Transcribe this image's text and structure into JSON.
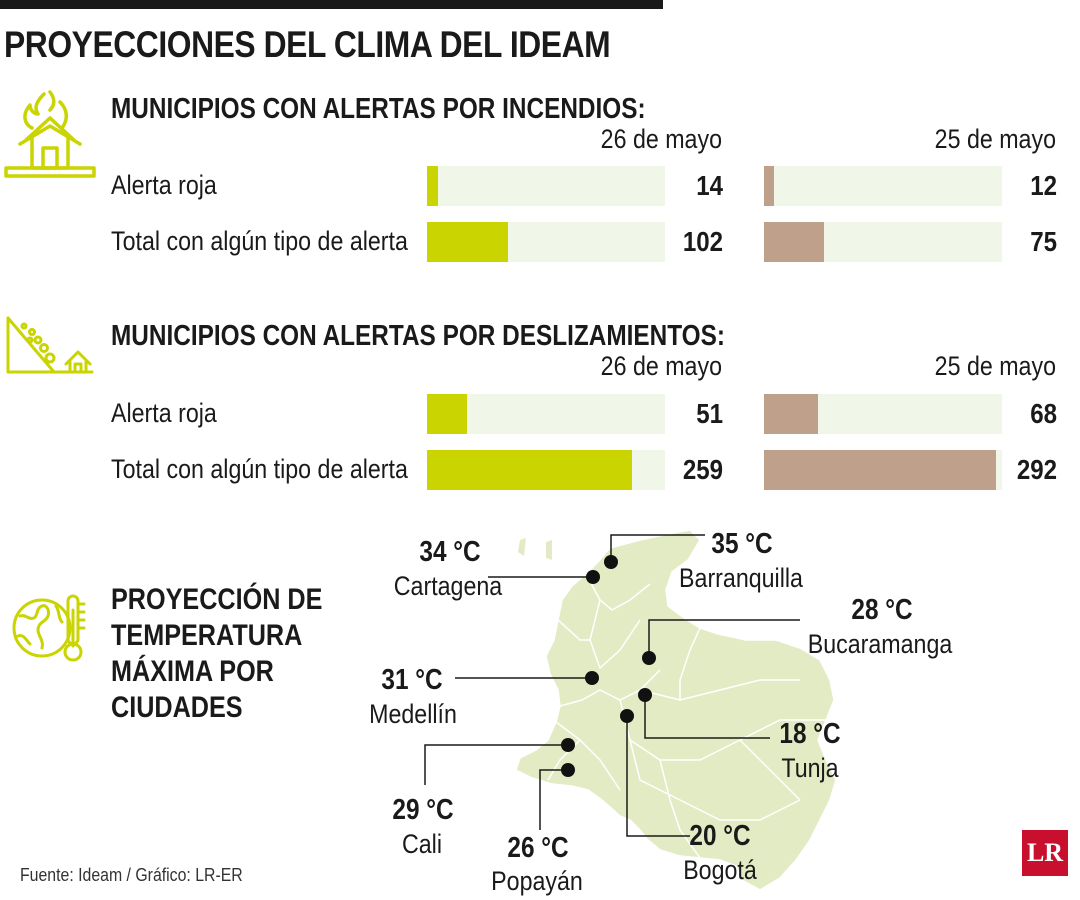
{
  "title": "PROYECCIONES DEL CLIMA DEL IDEAM",
  "colors": {
    "accent": "#c9d400",
    "previous": "#bfa08a",
    "track": "#f0f6e8",
    "map_fill": "#e3ebc4",
    "map_stroke": "#ffffff"
  },
  "chart_data": [
    {
      "type": "bar",
      "title": "MUNICIPIOS CON ALERTAS POR INCENDIOS:",
      "icon": "house-fire-icon",
      "categories": [
        "Alerta roja",
        "Total con algún tipo de alerta"
      ],
      "series": [
        {
          "name": "26 de mayo",
          "values": [
            14,
            102
          ]
        },
        {
          "name": "25 de mayo",
          "values": [
            12,
            75
          ]
        }
      ],
      "scale_max": 300
    },
    {
      "type": "bar",
      "title": "MUNICIPIOS CON ALERTAS POR DESLIZAMIENTOS:",
      "icon": "landslide-icon",
      "categories": [
        "Alerta roja",
        "Total con algún tipo de alerta"
      ],
      "series": [
        {
          "name": "26 de mayo",
          "values": [
            51,
            259
          ]
        },
        {
          "name": "25 de mayo",
          "values": [
            68,
            292
          ]
        }
      ],
      "scale_max": 300
    }
  ],
  "temperature": {
    "title_lines": [
      "PROYECCIÓN DE",
      "TEMPERATURA",
      "MÁXIMA POR",
      "CIUDADES"
    ],
    "icon": "globe-thermometer-icon",
    "cities": [
      {
        "name": "Cartagena",
        "temp": "34 °C"
      },
      {
        "name": "Barranquilla",
        "temp": "35 °C"
      },
      {
        "name": "Bucaramanga",
        "temp": "28 °C"
      },
      {
        "name": "Medellín",
        "temp": "31 °C"
      },
      {
        "name": "Tunja",
        "temp": "18 °C"
      },
      {
        "name": "Cali",
        "temp": "29 °C"
      },
      {
        "name": "Popayán",
        "temp": "26 °C"
      },
      {
        "name": "Bogotá",
        "temp": "20 °C"
      }
    ]
  },
  "source": "Fuente: Ideam / Gráfico: LR-ER",
  "logo": "LR"
}
